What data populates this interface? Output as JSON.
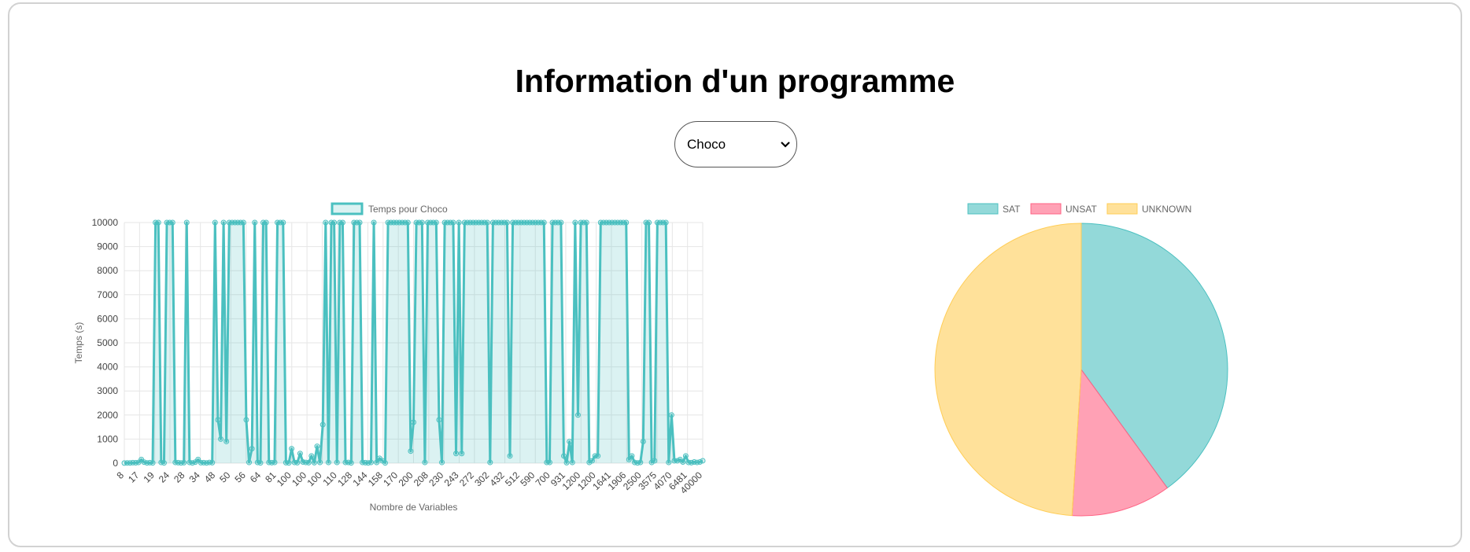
{
  "page": {
    "title": "Information d'un programme"
  },
  "selector": {
    "selected": "Choco",
    "options": [
      "Choco"
    ]
  },
  "colors": {
    "line": "#4bc0c0",
    "lineFill": "rgba(75,192,192,0.2)",
    "grid": "#e6e6e6",
    "text": "#666666",
    "sat": "#4bc0c0",
    "unsat": "#ff6384",
    "unknown": "#ffcd56"
  },
  "chart_data": [
    {
      "type": "line",
      "legend": [
        "Temps pour Choco"
      ],
      "xlabel": "Nombre de Variables",
      "ylabel": "Temps (s)",
      "ylim": [
        0,
        10000
      ],
      "yticks": [
        0,
        1000,
        2000,
        3000,
        4000,
        5000,
        6000,
        7000,
        8000,
        9000,
        10000
      ],
      "xtick_labels": [
        "8",
        "17",
        "19",
        "24",
        "28",
        "34",
        "48",
        "50",
        "56",
        "64",
        "81",
        "100",
        "100",
        "100",
        "110",
        "128",
        "144",
        "158",
        "170",
        "200",
        "208",
        "230",
        "243",
        "272",
        "302",
        "432",
        "512",
        "590",
        "700",
        "931",
        "1200",
        "1200",
        "1641",
        "1906",
        "2500",
        "3575",
        "4070",
        "6481",
        "40000"
      ],
      "series": [
        {
          "name": "Temps pour Choco",
          "values": [
            5,
            10,
            8,
            20,
            15,
            30,
            150,
            40,
            10,
            20,
            10,
            10000,
            10000,
            30,
            10,
            10000,
            10000,
            10000,
            30,
            20,
            10,
            20,
            10000,
            30,
            10,
            40,
            150,
            20,
            20,
            10,
            30,
            20,
            10000,
            1800,
            1000,
            10000,
            900,
            10000,
            10000,
            10000,
            10000,
            10000,
            10000,
            1800,
            30,
            600,
            10000,
            30,
            10,
            10000,
            10000,
            30,
            20,
            30,
            10000,
            10000,
            10000,
            20,
            10,
            600,
            30,
            20,
            400,
            50,
            30,
            20,
            300,
            20,
            700,
            30,
            1600,
            10000,
            30,
            10000,
            10000,
            30,
            10000,
            10000,
            30,
            30,
            10,
            10000,
            10000,
            10000,
            30,
            20,
            10,
            30,
            10000,
            30,
            200,
            100,
            10,
            10000,
            10000,
            10000,
            10000,
            10000,
            10000,
            10000,
            10000,
            500,
            1700,
            10000,
            10000,
            10000,
            30,
            10000,
            10000,
            10000,
            10000,
            1800,
            30,
            10000,
            10000,
            10000,
            10000,
            400,
            10000,
            400,
            10000,
            10000,
            10000,
            10000,
            10000,
            10000,
            10000,
            10000,
            10000,
            30,
            10000,
            10000,
            10000,
            10000,
            10000,
            10000,
            300,
            10000,
            10000,
            10000,
            10000,
            10000,
            10000,
            10000,
            10000,
            10000,
            10000,
            10000,
            10000,
            30,
            30,
            10000,
            10000,
            10000,
            10000,
            300,
            20,
            900,
            30,
            10000,
            2000,
            10000,
            10000,
            10000,
            30,
            100,
            300,
            300,
            10000,
            10000,
            10000,
            10000,
            10000,
            10000,
            10000,
            10000,
            10000,
            10000,
            150,
            300,
            30,
            10,
            30,
            900,
            10000,
            10000,
            30,
            100,
            10000,
            10000,
            10000,
            10000,
            30,
            2000,
            100,
            100,
            150,
            50,
            300,
            30,
            20,
            50,
            30,
            50,
            100
          ]
        }
      ]
    },
    {
      "type": "pie",
      "categories": [
        "SAT",
        "UNSAT",
        "UNKNOWN"
      ],
      "values": [
        40,
        11,
        49
      ],
      "legend_position": "top"
    }
  ]
}
